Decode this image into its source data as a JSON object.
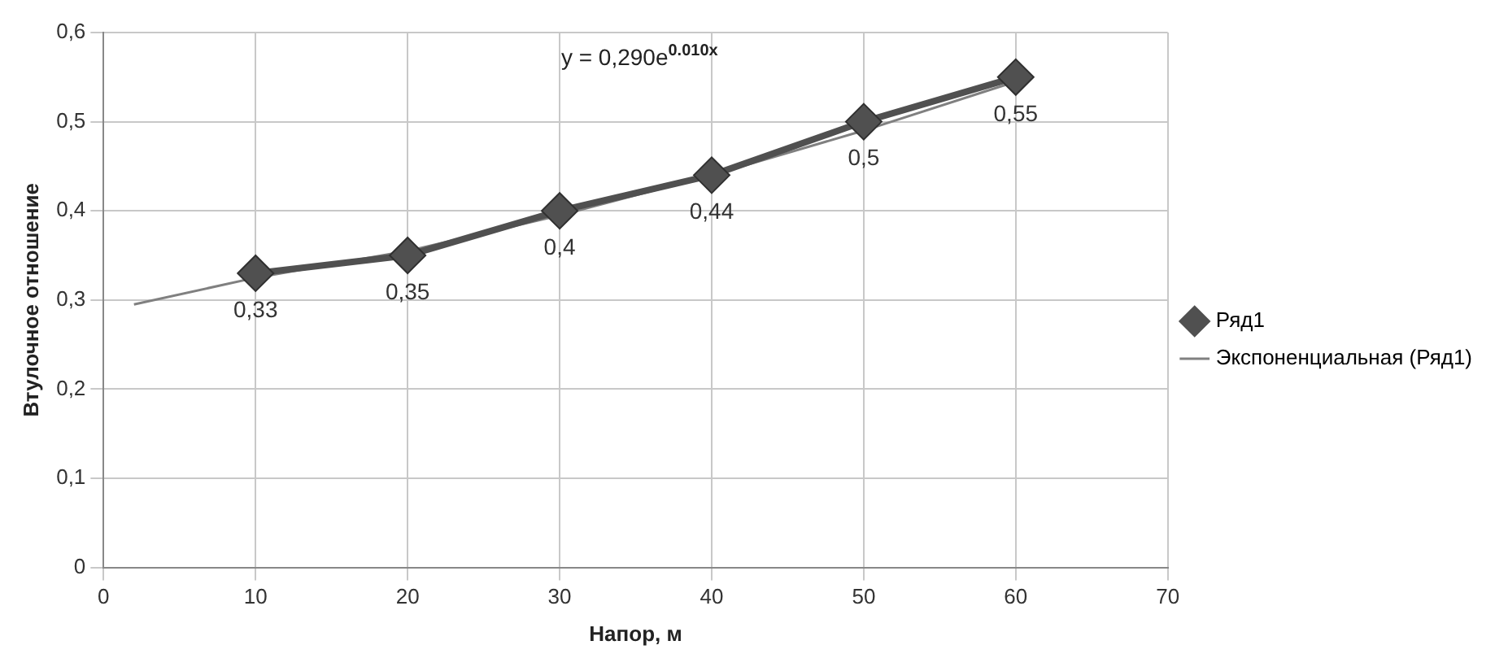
{
  "chart_data": {
    "type": "line",
    "xlabel": "Напор, м",
    "ylabel": "Втулочное отношение",
    "x": [
      10,
      20,
      30,
      40,
      50,
      60
    ],
    "series": [
      {
        "name": "Ряд1",
        "color": "#505050",
        "values": [
          0.33,
          0.35,
          0.4,
          0.44,
          0.5,
          0.55
        ],
        "marker": "diamond",
        "value_labels": [
          "0,33",
          "0,35",
          "0,4",
          "0,44",
          "0,5",
          "0,55"
        ]
      },
      {
        "name": "Экспоненциальная (Ряд1)",
        "color": "#808080",
        "x": [
          2,
          10,
          20,
          30,
          40,
          50,
          60
        ],
        "values": [
          0.295,
          0.325,
          0.355,
          0.395,
          0.44,
          0.49,
          0.545
        ],
        "marker": "none"
      }
    ],
    "annotations": [
      "y = 0,290e$^{0.010x}$"
    ],
    "xlim": [
      0,
      70
    ],
    "xticks": [
      0,
      10,
      20,
      30,
      40,
      50,
      60,
      70
    ],
    "ylim": [
      0,
      0.6
    ],
    "yticks": [
      0,
      {
        "value": 0.1,
        "label": "0,1"
      },
      {
        "value": 0.2,
        "label": "0,2"
      },
      {
        "value": 0.3,
        "label": "0,3"
      },
      {
        "value": 0.4,
        "label": "0,4"
      },
      {
        "value": 0.5,
        "label": "0,5"
      },
      {
        "value": 0.6,
        "label": "0,6"
      }
    ],
    "grid": true,
    "legend": "right"
  }
}
